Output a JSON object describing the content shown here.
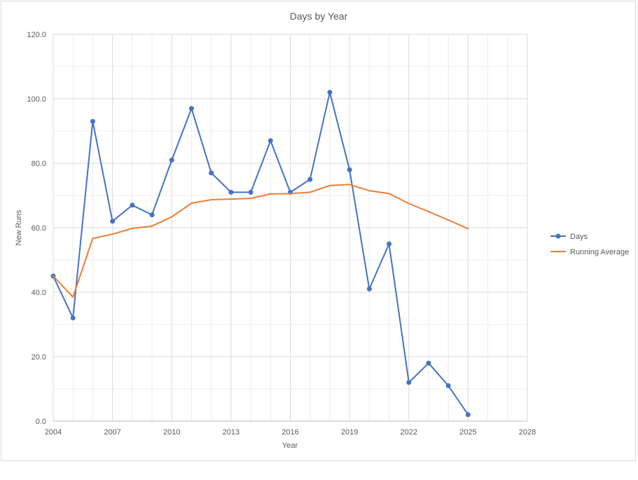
{
  "chart_data": {
    "type": "line",
    "title": "Days by Year",
    "xlabel": "Year",
    "ylabel": "New Runs",
    "xlim": [
      2004,
      2028
    ],
    "ylim": [
      0,
      120
    ],
    "x_ticks": [
      "2004",
      "2007",
      "2010",
      "2013",
      "2016",
      "2019",
      "2022",
      "2025",
      "2028"
    ],
    "y_ticks": [
      "0.0",
      "20.0",
      "40.0",
      "60.0",
      "80.0",
      "100.0",
      "120.0"
    ],
    "grid": true,
    "legend_position": "right",
    "series": [
      {
        "name": "Days",
        "color": "#4472c4",
        "marker": "circle",
        "x": [
          2004,
          2005,
          2006,
          2007,
          2008,
          2009,
          2010,
          2011,
          2012,
          2013,
          2014,
          2015,
          2016,
          2017,
          2018,
          2019,
          2020,
          2021,
          2022,
          2023,
          2024,
          2025
        ],
        "y": [
          45,
          32,
          93,
          62,
          67,
          64,
          81,
          97,
          77,
          71,
          71,
          87,
          71,
          75,
          102,
          78,
          41,
          55,
          12,
          18,
          11,
          2
        ]
      },
      {
        "name": "Running Average",
        "color": "#ed7d31",
        "marker": "none",
        "x": [
          2004,
          2005,
          2006,
          2007,
          2008,
          2009,
          2010,
          2011,
          2012,
          2013,
          2014,
          2015,
          2016,
          2017,
          2018,
          2019,
          2020,
          2021,
          2022,
          2023,
          2024,
          2025
        ],
        "y": [
          45.0,
          38.5,
          56.7,
          58.0,
          59.8,
          60.5,
          63.4,
          67.6,
          68.7,
          68.9,
          69.1,
          70.5,
          70.6,
          71.0,
          73.1,
          73.4,
          71.5,
          70.6,
          67.5,
          65.0,
          62.4,
          59.7
        ]
      }
    ]
  }
}
